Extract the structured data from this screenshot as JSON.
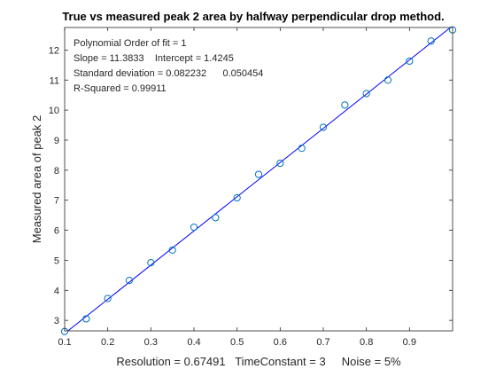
{
  "chart_data": {
    "type": "scatter",
    "title": "True vs measured peak 2 area by halfway perpendicular drop method.",
    "xlabel": "Resolution = 0.67491   TimeConstant = 3     Noise = 5%",
    "ylabel": "Measured area of peak 2",
    "xlim": [
      0.1,
      1.0
    ],
    "ylim": [
      2.65,
      12.75
    ],
    "xticks": [
      "0.1",
      "0.2",
      "0.3",
      "0.4",
      "0.5",
      "0.6",
      "0.7",
      "0.8",
      "0.9"
    ],
    "yticks": [
      "3",
      "4",
      "5",
      "6",
      "7",
      "8",
      "9",
      "10",
      "11",
      "12"
    ],
    "grid": false,
    "fit_info": [
      "Polynomial Order of fit = 1",
      "Slope = 11.3833    Intercept = 1.4245",
      "Standard deviation = 0.082232      0.050454",
      "R-Squared = 0.99911"
    ],
    "series": [
      {
        "marker": "circle",
        "color": "#0072bd",
        "x": [
          0.1,
          0.15,
          0.2,
          0.25,
          0.3,
          0.35,
          0.4,
          0.45,
          0.5,
          0.55,
          0.6,
          0.65,
          0.7,
          0.75,
          0.8,
          0.85,
          0.9,
          0.95,
          1.0
        ],
        "y": [
          2.63,
          3.05,
          3.73,
          4.33,
          4.92,
          5.34,
          6.1,
          6.42,
          7.08,
          7.86,
          8.23,
          8.73,
          9.43,
          10.17,
          10.55,
          11.0,
          11.63,
          12.3,
          12.67
        ]
      },
      {
        "type": "line",
        "color": "#0000ff",
        "x": [
          0.1,
          1.0
        ],
        "y": [
          2.5628,
          12.8078
        ]
      }
    ]
  }
}
